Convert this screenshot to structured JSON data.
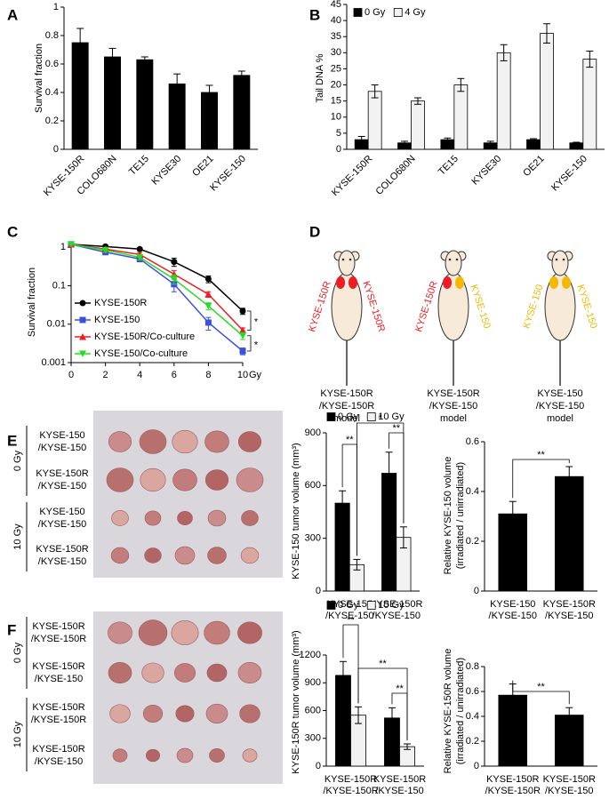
{
  "panel_labels": [
    "A",
    "B",
    "C",
    "D",
    "E",
    "F"
  ],
  "chart_data": [
    {
      "type": "bar",
      "ylabel": "Survival  fraction",
      "categories": [
        "KYSE-150R",
        "COLO680N",
        "TE15",
        "KYSE30",
        "OE21",
        "KYSE-150"
      ],
      "values": [
        0.75,
        0.65,
        0.63,
        0.46,
        0.4,
        0.52
      ],
      "errors": [
        0.1,
        0.06,
        0.02,
        0.07,
        0.05,
        0.03
      ],
      "color": "#000000",
      "ylim": [
        0,
        1
      ],
      "yticks": [
        0,
        0.2,
        0.4,
        0.6,
        0.8,
        1
      ]
    },
    {
      "type": "bar",
      "ylabel": "Tail DNA %",
      "categories": [
        "KYSE-150R",
        "COLO680N",
        "TE15",
        "KYSE30",
        "OE21",
        "KYSE-150"
      ],
      "series": [
        {
          "name": "0 Gy",
          "color": "#000000",
          "values": [
            3,
            2,
            3,
            2,
            3,
            2
          ],
          "errors": [
            1,
            0.5,
            0.5,
            0.5,
            0.3,
            0.2
          ]
        },
        {
          "name": "4 Gy",
          "color": "#f2f2f2",
          "values": [
            18,
            15,
            20,
            30,
            36,
            28
          ],
          "errors": [
            2,
            1,
            2,
            2.5,
            3,
            2.5
          ]
        }
      ],
      "ylim": [
        0,
        45
      ],
      "yticks": [
        0,
        5,
        10,
        15,
        20,
        25,
        30,
        35,
        40,
        45
      ],
      "legend": "upper left"
    },
    {
      "type": "line",
      "ylabel": "Survival  fraction",
      "xlabel": "Gy",
      "log_y": true,
      "x": [
        0,
        2,
        4,
        6,
        8,
        10
      ],
      "xlim": [
        0,
        10
      ],
      "xticks": [
        0,
        2,
        4,
        6,
        8,
        10
      ],
      "ylim": [
        0.001,
        1.4
      ],
      "yticks": [
        0.001,
        0.01,
        0.1,
        1
      ],
      "legend": "lower left",
      "series": [
        {
          "name": "KYSE-150R",
          "color": "#000000",
          "marker": "circle",
          "values": [
            1.2,
            1.05,
            0.9,
            0.42,
            0.15,
            0.022
          ],
          "errors": [
            0.05,
            0.1,
            0.08,
            0.1,
            0.03,
            0.004
          ]
        },
        {
          "name": "KYSE-150",
          "color": "#3b4fe0",
          "marker": "square",
          "values": [
            1.2,
            0.75,
            0.5,
            0.11,
            0.011,
            0.002
          ],
          "errors": [
            0.05,
            0.1,
            0.08,
            0.04,
            0.004,
            0.0004
          ]
        },
        {
          "name": "KYSE-150R/Co-culture",
          "color": "#ee1c24",
          "marker": "triangle",
          "values": [
            1.2,
            0.9,
            0.65,
            0.2,
            0.06,
            0.007
          ],
          "errors": [
            0.05,
            0.1,
            0.08,
            0.05,
            0.01,
            0.001
          ]
        },
        {
          "name": "KYSE-150/Co-culture",
          "color": "#22dd22",
          "marker": "triangle-down",
          "values": [
            1.2,
            0.85,
            0.55,
            0.15,
            0.03,
            0.005
          ],
          "errors": [
            0.05,
            0.1,
            0.08,
            0.04,
            0.006,
            0.001
          ]
        }
      ],
      "annotations": [
        "*",
        "*"
      ]
    },
    {
      "type": "bar",
      "ylabel": "KYSE-150 tumor volume (mm³)",
      "categories": [
        [
          "KYSE-150",
          "/KYSE-150"
        ],
        [
          "KYSE-150R",
          "/KYSE-150"
        ]
      ],
      "series": [
        {
          "name": "0 Gy",
          "color": "#000000",
          "values": [
            500,
            670
          ],
          "errors": [
            70,
            120
          ]
        },
        {
          "name": "10 Gy",
          "color": "#f2f2f2",
          "values": [
            150,
            305
          ],
          "errors": [
            30,
            60
          ]
        }
      ],
      "ylim": [
        0,
        900
      ],
      "yticks": [
        0,
        300,
        600,
        900
      ],
      "legend": "upper left",
      "annotations": [
        "**",
        "**",
        "*"
      ]
    },
    {
      "type": "bar",
      "ylabel": [
        "Relative KYSE-150 volume",
        "(irradiated / unirradiated)"
      ],
      "categories": [
        [
          "KYSE-150",
          "/KYSE-150"
        ],
        [
          "KYSE-150R",
          "/KYSE-150"
        ]
      ],
      "values": [
        0.31,
        0.46
      ],
      "errors": [
        0.05,
        0.04
      ],
      "color": "#000000",
      "ylim": [
        0,
        0.6
      ],
      "yticks": [
        0,
        0.2,
        0.4,
        0.6
      ],
      "annotations": [
        "**"
      ]
    },
    {
      "type": "bar",
      "ylabel": "KYSE-150R tumor volume (mm³)",
      "categories": [
        [
          "KYSE-150R",
          "/KYSE-150R"
        ],
        [
          "KYSE-150R",
          "/KYSE-150"
        ]
      ],
      "series": [
        {
          "name": "0 Gy",
          "color": "#000000",
          "values": [
            980,
            520
          ],
          "errors": [
            150,
            110
          ]
        },
        {
          "name": "10 Gy",
          "color": "#f2f2f2",
          "values": [
            550,
            210
          ],
          "errors": [
            90,
            30
          ]
        }
      ],
      "ylim": [
        0,
        1200
      ],
      "yticks": [
        0,
        300,
        600,
        900,
        1200
      ],
      "legend": "upper left",
      "annotations": [
        "**",
        "**",
        "**"
      ]
    },
    {
      "type": "bar",
      "ylabel": [
        "Relative KYSE-150R volume",
        "(irradiated / unirradiated)"
      ],
      "categories": [
        [
          "KYSE-150R",
          "/KYSE-150R"
        ],
        [
          "KYSE-150R",
          "/KYSE-150"
        ]
      ],
      "values": [
        0.57,
        0.41
      ],
      "errors": [
        0.09,
        0.06
      ],
      "color": "#000000",
      "ylim": [
        0,
        0.8
      ],
      "yticks": [
        0,
        0.2,
        0.4,
        0.6,
        0.8
      ],
      "annotations": [
        "**"
      ]
    }
  ],
  "diagram": {
    "mice": [
      {
        "left_label": "KYSE-150R",
        "left_color": "#ee1c24",
        "right_label": "KYSE-150R",
        "right_color": "#ee1c24",
        "caption": [
          "KYSE-150R",
          "/KYSE-150R",
          "model"
        ]
      },
      {
        "left_label": "KYSE-150R",
        "left_color": "#ee1c24",
        "right_label": "KYSE-150",
        "right_color": "#f5b800",
        "caption": [
          "KYSE-150R",
          "/KYSE-150",
          "model"
        ]
      },
      {
        "left_label": "KYSE-150",
        "left_color": "#f5b800",
        "right_label": "KYSE-150",
        "right_color": "#f5b800",
        "caption": [
          "KYSE-150",
          "/KYSE-150",
          "model"
        ]
      }
    ]
  },
  "photos": [
    {
      "groups": [
        "0 Gy",
        "10 Gy"
      ],
      "rows": [
        [
          "KYSE-150",
          "/KYSE-150"
        ],
        [
          "KYSE-150R",
          "/KYSE-150"
        ],
        [
          "KYSE-150",
          "/KYSE-150"
        ],
        [
          "KYSE-150R",
          "/KYSE-150"
        ]
      ]
    },
    {
      "groups": [
        "0 Gy",
        "10 Gy"
      ],
      "rows": [
        [
          "KYSE-150R",
          "/KYSE-150R"
        ],
        [
          "KYSE-150R",
          "/KYSE-150"
        ],
        [
          "KYSE-150R",
          "/KYSE-150R"
        ],
        [
          "KYSE-150R",
          "/KYSE-150"
        ]
      ]
    }
  ]
}
